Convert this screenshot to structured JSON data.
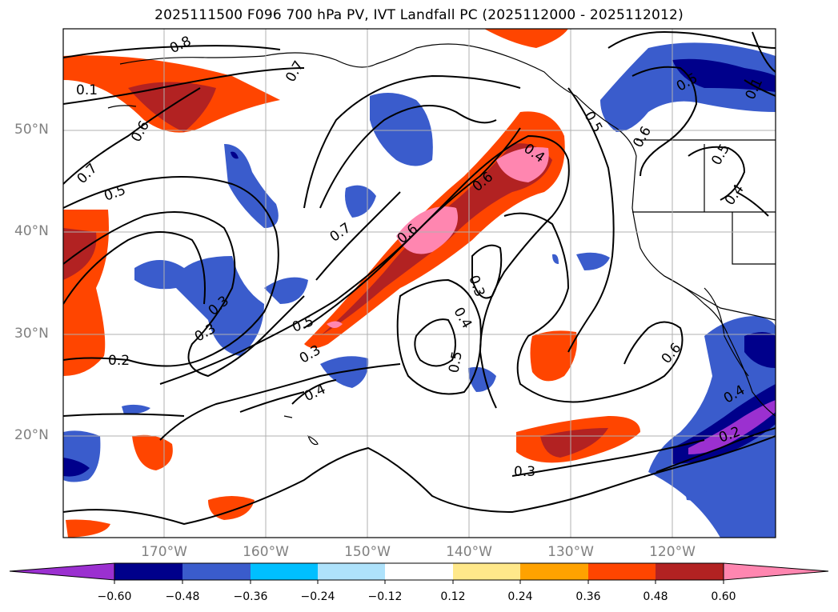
{
  "title": "2025111500 F096 700 hPa PV, IVT Landfall PC (2025112000 - 2025112012)",
  "lat_labels": [
    "50°N",
    "40°N",
    "30°N",
    "20°N"
  ],
  "lon_labels": [
    "170°W",
    "160°W",
    "150°W",
    "140°W",
    "130°W",
    "120°W"
  ],
  "colorbar": {
    "ticks": [
      "−0.60",
      "−0.48",
      "−0.36",
      "−0.24",
      "−0.12",
      "0.12",
      "0.24",
      "0.36",
      "0.48",
      "0.60"
    ],
    "colors": [
      "#9b30d0",
      "#00008b",
      "#3a5ccc",
      "#00bfff",
      "#aee2fb",
      "#ffffff",
      "#ffe88a",
      "#ffa200",
      "#ff4500",
      "#b22222",
      "#ff86b0"
    ]
  },
  "contour_labels": [
    "0.8",
    "0.7",
    "0.7",
    "0.6",
    "0.5",
    "0.1",
    "0.5",
    "0.7",
    "0.6",
    "0.4",
    "0.3",
    "0.5",
    "0.3",
    "0.2",
    "0.3",
    "0.4",
    "0.5",
    "0.3",
    "0.4",
    "0.5",
    "0.6",
    "0.6",
    "0.5",
    "0.4",
    "0.1",
    "0.6",
    "0.2",
    "0.3",
    "0.4"
  ]
}
